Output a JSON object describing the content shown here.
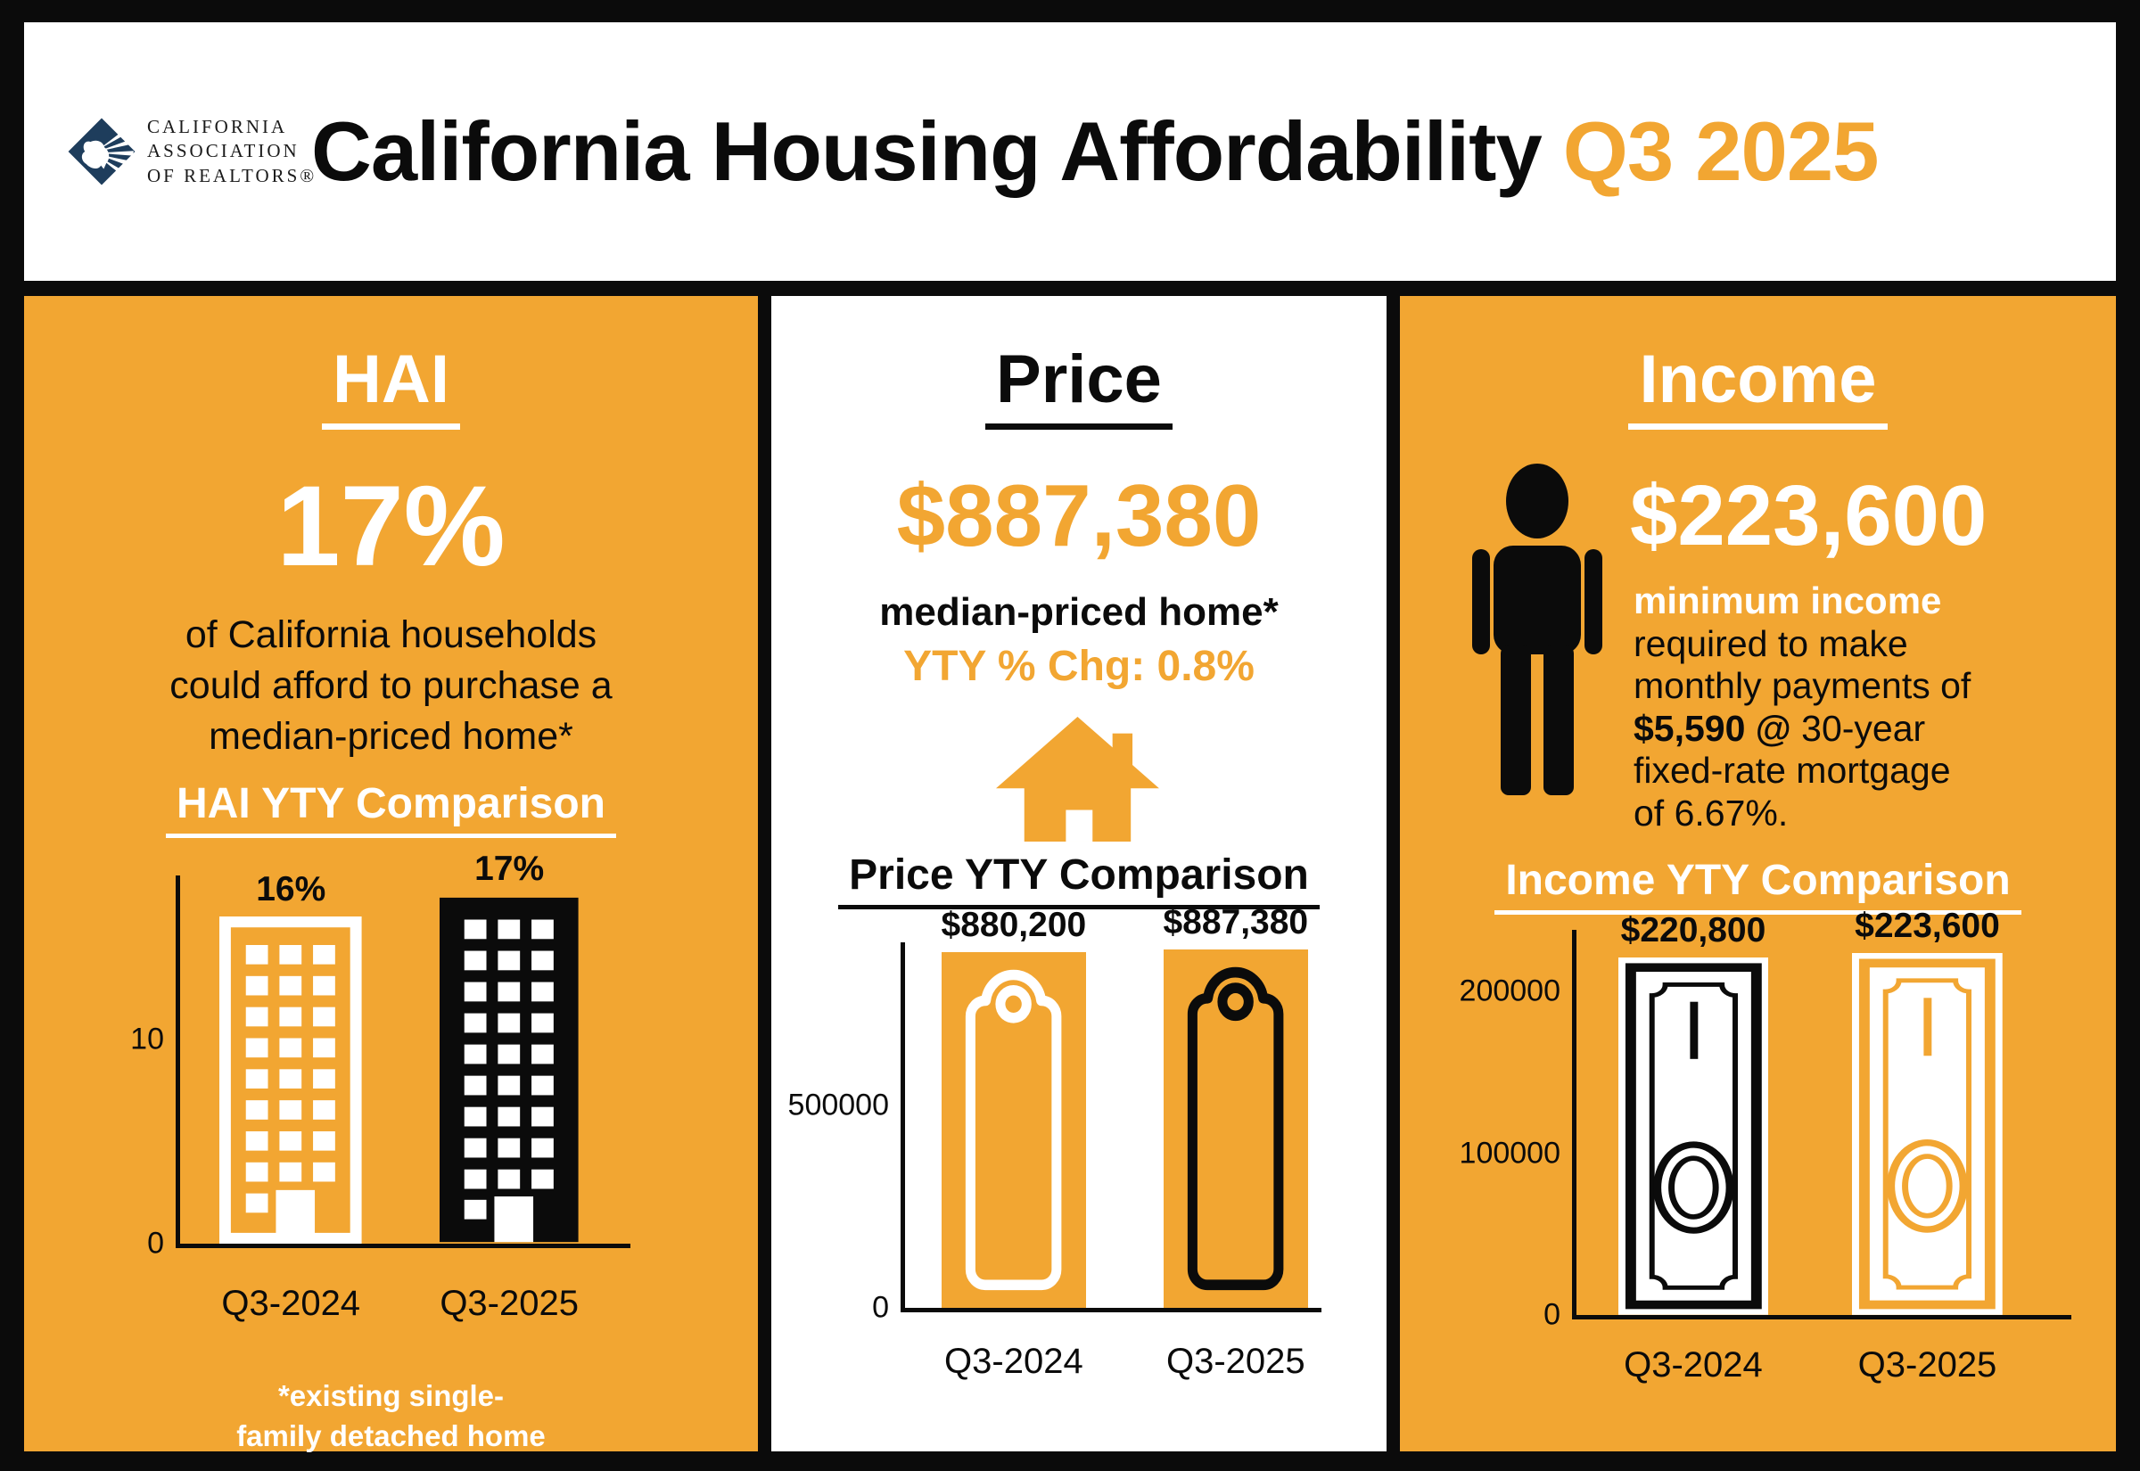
{
  "colors": {
    "orange": "#F2A632",
    "navy": "#1E3D5C",
    "black": "#0b0b0b",
    "white": "#ffffff"
  },
  "icons": {
    "logo": "car-diamond-bear-logo",
    "building": "building-icon",
    "house": "house-icon",
    "person": "person-icon",
    "price_tag": "price-tag-icon",
    "dollar_bill": "dollar-bill-icon"
  },
  "header": {
    "logo_lines": [
      "CALIFORNIA",
      "ASSOCIATION",
      "OF REALTORS®"
    ],
    "title": "California Housing Affordability",
    "title_accent": "Q3 2025"
  },
  "hai": {
    "heading": "HAI",
    "value": "17%",
    "desc_lines": [
      "of California households",
      "could afford to purchase a",
      "median-priced home*"
    ],
    "chart_title": "HAI YTY Comparison",
    "footnote_lines": [
      "*existing single-",
      "family detached home"
    ]
  },
  "price": {
    "heading": "Price",
    "value": "$887,380",
    "subtitle": "median-priced home*",
    "change_label": "YTY % Chg: 0.8%",
    "chart_title": "Price YTY Comparison"
  },
  "income": {
    "heading": "Income",
    "value": "$223,600",
    "desc_highlight": "minimum income",
    "desc_lines_a": [
      "required to make",
      "monthly payments of"
    ],
    "desc_bold": "$5,590 @",
    "desc_bold_rest": " 30-year",
    "desc_lines_b": [
      "fixed-rate mortgage",
      "of 6.67%."
    ],
    "chart_title": "Income YTY Comparison"
  },
  "chart_data": [
    {
      "type": "bar",
      "title": "HAI YTY Comparison",
      "categories": [
        "Q3-2024",
        "Q3-2025"
      ],
      "values": [
        16,
        17
      ],
      "value_labels": [
        "16%",
        "17%"
      ],
      "unit": "percent of households",
      "ylim": [
        0,
        18
      ],
      "yticks": [
        {
          "v": 0,
          "label": "0"
        },
        {
          "v": 10,
          "label": "10"
        }
      ],
      "grid": false,
      "legend": "none"
    },
    {
      "type": "bar",
      "title": "Price YTY Comparison",
      "categories": [
        "Q3-2024",
        "Q3-2025"
      ],
      "values": [
        880200,
        887380
      ],
      "value_labels": [
        "$880,200",
        "$887,380"
      ],
      "unit": "USD median price",
      "ylim": [
        0,
        905000
      ],
      "yticks": [
        {
          "v": 0,
          "label": "0"
        },
        {
          "v": 500000,
          "label": "500000"
        }
      ],
      "grid": false,
      "legend": "none"
    },
    {
      "type": "bar",
      "title": "Income YTY Comparison",
      "categories": [
        "Q3-2024",
        "Q3-2025"
      ],
      "values": [
        220800,
        223600
      ],
      "value_labels": [
        "$220,800",
        "$223,600"
      ],
      "unit": "USD minimum qualifying income",
      "ylim": [
        0,
        238000
      ],
      "yticks": [
        {
          "v": 0,
          "label": "0"
        },
        {
          "v": 100000,
          "label": "100000"
        },
        {
          "v": 200000,
          "label": "200000"
        }
      ],
      "grid": false,
      "legend": "none"
    }
  ]
}
